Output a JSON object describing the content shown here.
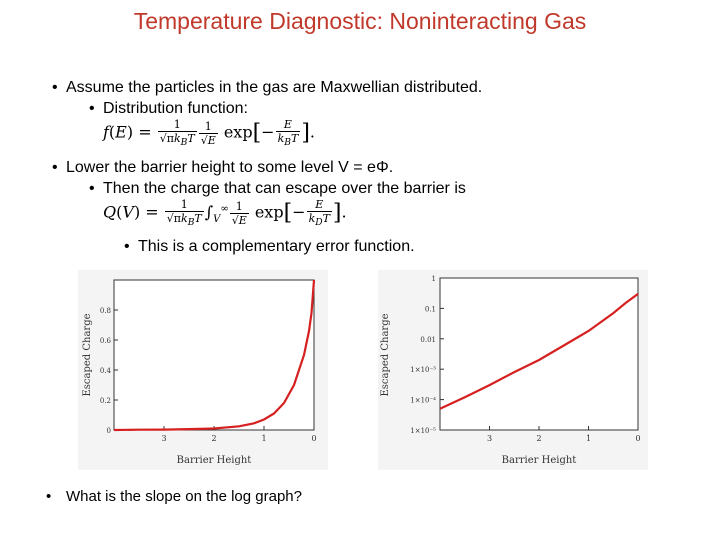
{
  "title": "Temperature Diagnostic: Noninteracting Gas",
  "bullets": {
    "b1": "Assume the particles in the gas are Maxwellian distributed.",
    "b1a": "Distribution function:",
    "b2": "Lower the barrier height to some level V = eΦ.",
    "b2a": "Then the charge that can escape over the barrier is",
    "b2b": "This is a complementary error function."
  },
  "question": "What is the slope on the log graph?",
  "chart_data": [
    {
      "type": "line",
      "xlabel": "Barrier Height",
      "ylabel": "Escaped Charge",
      "x_ticks": [
        "3",
        "2",
        "1",
        "0"
      ],
      "y_ticks": [
        "0.8",
        "0.6",
        "0.4",
        "0.2",
        "0"
      ],
      "xlim": [
        4,
        0
      ],
      "ylim": [
        0,
        1
      ],
      "series": [
        {
          "color": "#d62020",
          "x": [
            4,
            3.5,
            3,
            2.5,
            2,
            1.5,
            1.2,
            1,
            0.8,
            0.6,
            0.4,
            0.2,
            0.1,
            0.05,
            0
          ],
          "y": [
            0,
            0.002,
            0.003,
            0.006,
            0.01,
            0.025,
            0.045,
            0.07,
            0.11,
            0.18,
            0.3,
            0.5,
            0.66,
            0.78,
            1.0
          ]
        }
      ]
    },
    {
      "type": "line",
      "xlabel": "Barrier Height",
      "ylabel": "Escaped Charge",
      "log_y": true,
      "x_ticks": [
        "3",
        "2",
        "1",
        "0"
      ],
      "y_ticks": [
        "1",
        "0.1",
        "0.01",
        "1×10⁻³",
        "1×10⁻⁴",
        "1×10⁻⁵"
      ],
      "xlim": [
        4,
        0
      ],
      "ylim": [
        1e-05,
        1
      ],
      "series": [
        {
          "color": "#d62020",
          "x": [
            4,
            3.5,
            3,
            2.5,
            2,
            1.5,
            1,
            0.5,
            0.25,
            0
          ],
          "y": [
            5e-05,
            0.00012,
            0.0003,
            0.0008,
            0.002,
            0.006,
            0.018,
            0.07,
            0.15,
            0.3
          ]
        }
      ]
    }
  ]
}
